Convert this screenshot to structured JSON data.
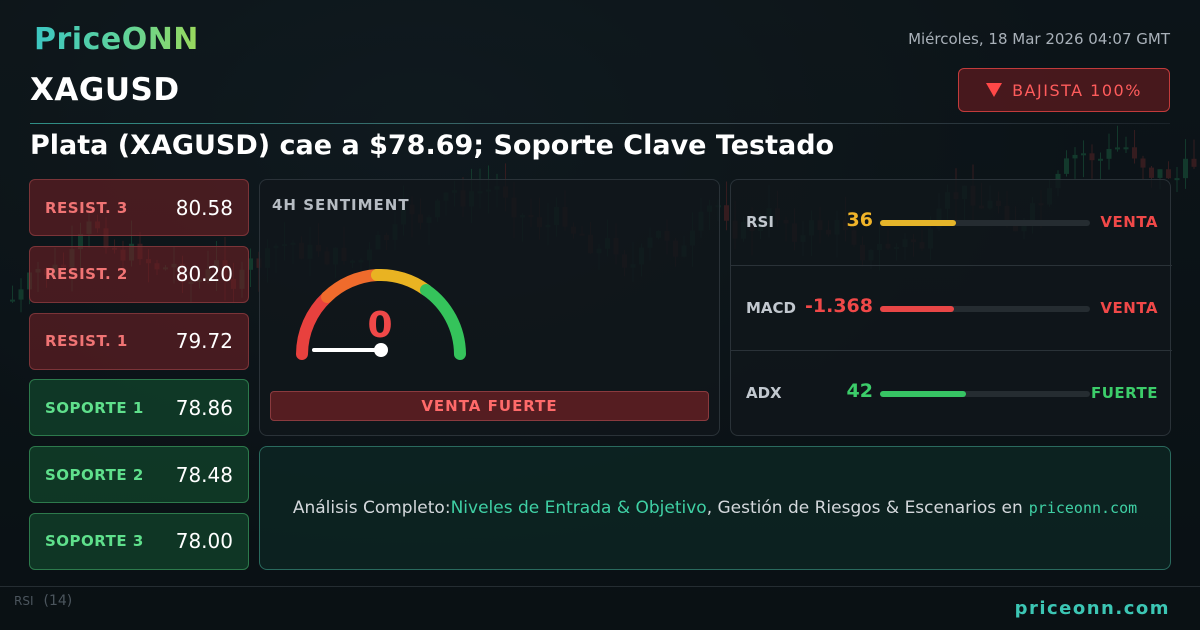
{
  "brand": {
    "logo": "PriceONN",
    "footer_site": "priceonn.com"
  },
  "header": {
    "symbol": "XAGUSD",
    "datetime": "Miércoles, 18 Mar 2026 04:07 GMT",
    "trend_badge": "BAJISTA 100%",
    "trend_icon": "down-triangle-icon",
    "headline": "Plata (XAGUSD) cae a $78.69; Soporte Clave Testado"
  },
  "levels": [
    {
      "label": "RESIST. 3",
      "value": "80.58",
      "kind": "resistance"
    },
    {
      "label": "RESIST. 2",
      "value": "80.20",
      "kind": "resistance"
    },
    {
      "label": "RESIST. 1",
      "value": "79.72",
      "kind": "resistance"
    },
    {
      "label": "SOPORTE 1",
      "value": "78.86",
      "kind": "support"
    },
    {
      "label": "SOPORTE 2",
      "value": "78.48",
      "kind": "support"
    },
    {
      "label": "SOPORTE 3",
      "value": "78.00",
      "kind": "support"
    }
  ],
  "sentiment": {
    "title": "4H SENTIMENT",
    "gauge_value": "0",
    "gauge_fraction": 0,
    "verdict": "VENTA FUERTE"
  },
  "indicators": [
    {
      "name": "RSI",
      "value": "36",
      "fraction": 0.36,
      "signal": "VENTA",
      "value_color": "#f0b429",
      "bar_color": "#e5b52a",
      "signal_color": "#f04848"
    },
    {
      "name": "MACD",
      "value": "-1.368",
      "fraction": 0.35,
      "signal": "VENTA",
      "value_color": "#f04848",
      "bar_color": "#e84646",
      "signal_color": "#f04848"
    },
    {
      "name": "ADX",
      "value": "42",
      "fraction": 0.41,
      "signal": "FUERTE",
      "value_color": "#3ccd6a",
      "bar_color": "#37c464",
      "signal_color": "#3ccd6a"
    }
  ],
  "promo": {
    "prefix": "Análisis Completo: ",
    "highlight": "Niveles de Entrada & Objetivo",
    "middle": ", Gestión de Riesgos & Escenarios en",
    "site": "priceonn.com"
  },
  "background_chart": {
    "rsi_label": "RSI",
    "rsi_period": "(14)"
  },
  "colors": {
    "bearish": "#f04848",
    "bullish": "#3ccd6a",
    "accent": "#3cc6b4"
  }
}
